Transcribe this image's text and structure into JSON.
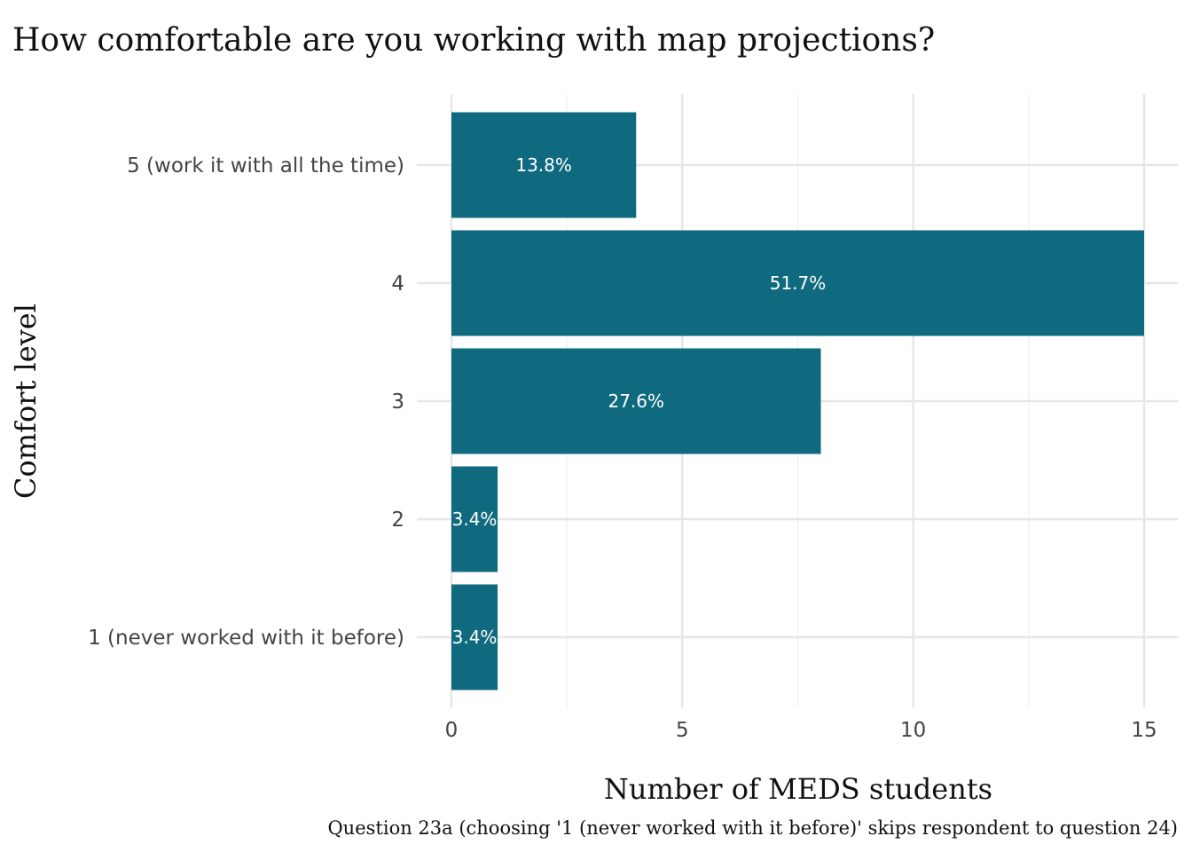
{
  "chart_data": {
    "type": "bar",
    "orientation": "horizontal",
    "title": "How comfortable are you working with map projections?",
    "xlabel": "Number of MEDS students",
    "ylabel": "Comfort level",
    "caption": "Question 23a (choosing '1 (never worked with it before)' skips respondent to question 24)",
    "categories": [
      "5 (work it with all the time)",
      "4",
      "3",
      "2",
      "1 (never worked with it before)"
    ],
    "values": [
      4,
      15,
      8,
      1,
      1
    ],
    "data_labels": [
      "13.8%",
      "51.7%",
      "27.6%",
      "3.4%",
      "3.4%"
    ],
    "x_ticks": [
      "0",
      "5",
      "10",
      "15"
    ],
    "x_tick_values": [
      0,
      5,
      10,
      15
    ],
    "xlim": [
      0,
      15
    ],
    "bar_color": "#0f6a7f",
    "grid": true
  }
}
